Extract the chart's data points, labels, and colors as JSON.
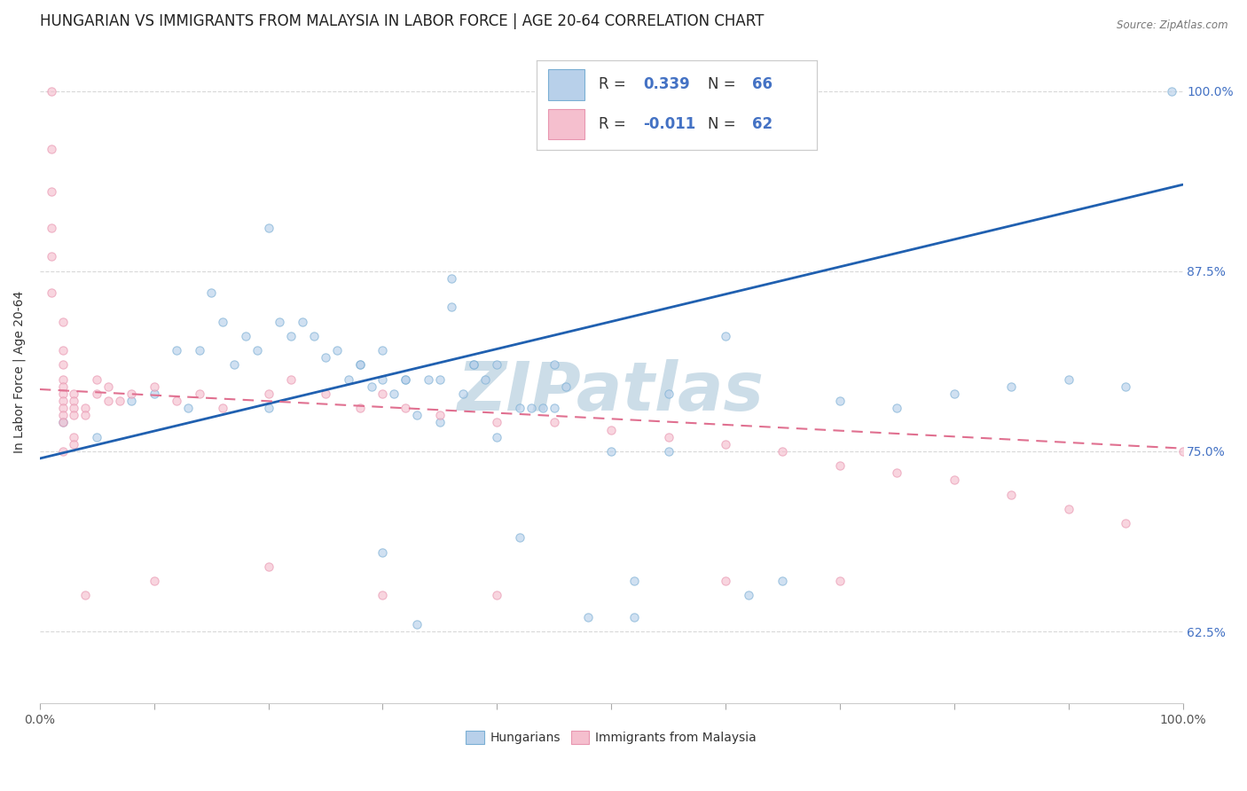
{
  "title": "HUNGARIAN VS IMMIGRANTS FROM MALAYSIA IN LABOR FORCE | AGE 20-64 CORRELATION CHART",
  "source": "Source: ZipAtlas.com",
  "ylabel": "In Labor Force | Age 20-64",
  "xlim": [
    0.0,
    1.0
  ],
  "ylim": [
    0.575,
    1.035
  ],
  "xtick_positions": [
    0.0,
    0.1,
    0.2,
    0.3,
    0.4,
    0.5,
    0.6,
    0.7,
    0.8,
    0.9,
    1.0
  ],
  "xticklabels": [
    "0.0%",
    "",
    "",
    "",
    "",
    "",
    "",
    "",
    "",
    "",
    "100.0%"
  ],
  "ytick_positions": [
    0.625,
    0.75,
    0.875,
    1.0
  ],
  "yticklabels": [
    "62.5%",
    "75.0%",
    "87.5%",
    "100.0%"
  ],
  "R_hungarian": 0.339,
  "N_hungarian": 66,
  "R_malaysia": -0.011,
  "N_malaysia": 62,
  "blue_color": "#b8d0ea",
  "pink_color": "#f5bfce",
  "blue_edge_color": "#7aafd4",
  "pink_edge_color": "#e896b0",
  "blue_line_color": "#2060b0",
  "pink_line_color": "#e07090",
  "watermark": "ZIPatlas",
  "title_fontsize": 12,
  "label_fontsize": 10,
  "tick_fontsize": 10,
  "blue_scatter_x": [
    0.02,
    0.05,
    0.08,
    0.1,
    0.12,
    0.13,
    0.14,
    0.15,
    0.16,
    0.17,
    0.18,
    0.19,
    0.2,
    0.21,
    0.22,
    0.23,
    0.24,
    0.25,
    0.26,
    0.27,
    0.28,
    0.29,
    0.3,
    0.31,
    0.32,
    0.33,
    0.34,
    0.35,
    0.36,
    0.37,
    0.38,
    0.39,
    0.4,
    0.42,
    0.43,
    0.44,
    0.45,
    0.5,
    0.52,
    0.55,
    0.6,
    0.65,
    0.7,
    0.75,
    0.8,
    0.85,
    0.9,
    0.95,
    0.99,
    0.3,
    0.55,
    0.2,
    0.33,
    0.42,
    0.62,
    0.35,
    0.4,
    0.45,
    0.28,
    0.3,
    0.32,
    0.36,
    0.38,
    0.46,
    0.48,
    0.52
  ],
  "blue_scatter_y": [
    0.77,
    0.76,
    0.785,
    0.79,
    0.82,
    0.78,
    0.82,
    0.86,
    0.84,
    0.81,
    0.83,
    0.82,
    0.905,
    0.84,
    0.83,
    0.84,
    0.83,
    0.815,
    0.82,
    0.8,
    0.81,
    0.795,
    0.8,
    0.79,
    0.8,
    0.775,
    0.8,
    0.77,
    0.87,
    0.79,
    0.81,
    0.8,
    0.76,
    0.78,
    0.78,
    0.78,
    0.78,
    0.75,
    0.66,
    0.79,
    0.83,
    0.66,
    0.785,
    0.78,
    0.79,
    0.795,
    0.8,
    0.795,
    1.0,
    0.68,
    0.75,
    0.78,
    0.63,
    0.69,
    0.65,
    0.8,
    0.81,
    0.81,
    0.81,
    0.82,
    0.8,
    0.85,
    0.81,
    0.795,
    0.635,
    0.635
  ],
  "pink_scatter_x": [
    0.01,
    0.01,
    0.01,
    0.01,
    0.01,
    0.01,
    0.02,
    0.02,
    0.02,
    0.02,
    0.02,
    0.02,
    0.02,
    0.02,
    0.02,
    0.02,
    0.02,
    0.03,
    0.03,
    0.03,
    0.03,
    0.03,
    0.03,
    0.04,
    0.04,
    0.04,
    0.05,
    0.05,
    0.06,
    0.06,
    0.07,
    0.08,
    0.1,
    0.12,
    0.14,
    0.16,
    0.2,
    0.22,
    0.25,
    0.28,
    0.3,
    0.32,
    0.35,
    0.4,
    0.45,
    0.5,
    0.55,
    0.6,
    0.65,
    0.7,
    0.75,
    0.8,
    0.85,
    0.9,
    0.95,
    1.0,
    0.4,
    0.3,
    0.1,
    0.2,
    0.6,
    0.7
  ],
  "pink_scatter_y": [
    1.0,
    0.96,
    0.93,
    0.905,
    0.885,
    0.86,
    0.84,
    0.82,
    0.81,
    0.8,
    0.795,
    0.79,
    0.785,
    0.78,
    0.775,
    0.77,
    0.75,
    0.79,
    0.785,
    0.78,
    0.775,
    0.76,
    0.755,
    0.78,
    0.775,
    0.65,
    0.8,
    0.79,
    0.795,
    0.785,
    0.785,
    0.79,
    0.795,
    0.785,
    0.79,
    0.78,
    0.79,
    0.8,
    0.79,
    0.78,
    0.79,
    0.78,
    0.775,
    0.77,
    0.77,
    0.765,
    0.76,
    0.755,
    0.75,
    0.74,
    0.735,
    0.73,
    0.72,
    0.71,
    0.7,
    0.75,
    0.65,
    0.65,
    0.66,
    0.67,
    0.66,
    0.66
  ],
  "blue_line_x": [
    0.0,
    1.0
  ],
  "blue_line_y": [
    0.745,
    0.935
  ],
  "pink_line_x": [
    0.0,
    1.0
  ],
  "pink_line_y": [
    0.793,
    0.752
  ],
  "scatter_size": 45,
  "scatter_alpha": 0.65,
  "scatter_linewidth": 0.8,
  "grid_color": "#d8d8d8",
  "background_color": "#ffffff",
  "right_ytick_color": "#4472c4",
  "watermark_color": "#ccdde8",
  "watermark_fontsize": 55,
  "legend_value_color": "#4472c4",
  "legend_label_color": "#333333",
  "legend_fontsize": 12
}
